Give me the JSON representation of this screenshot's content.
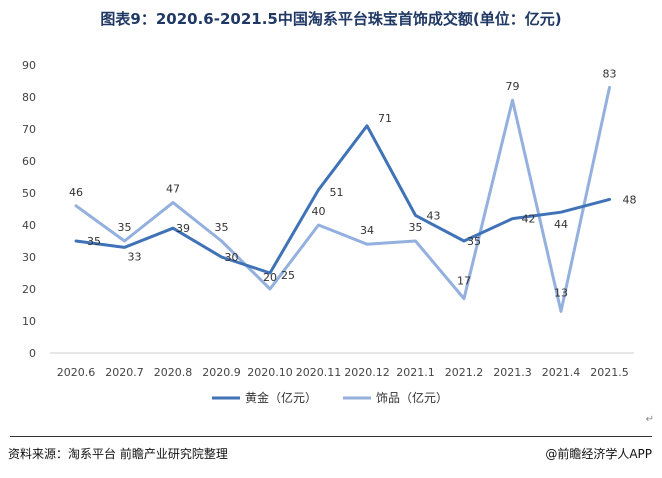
{
  "title": "图表9：2020.6-2021.5中国淘系平台珠宝首饰成交额(单位：亿元)",
  "source": "资料来源：淘系平台 前瞻产业研究院整理",
  "brand": "@前瞻经济学人APP",
  "corner_mark": "↵",
  "chart_data": {
    "type": "line",
    "categories": [
      "2020.6",
      "2020.7",
      "2020.8",
      "2020.9",
      "2020.10",
      "2020.11",
      "2020.12",
      "2021.1",
      "2021.2",
      "2021.3",
      "2021.4",
      "2021.5"
    ],
    "y_ticks": [
      "0",
      "10",
      "20",
      "30",
      "40",
      "50",
      "60",
      "70",
      "80",
      "90"
    ],
    "ylim": [
      0,
      90
    ],
    "grid": false,
    "legend_position": "bottom",
    "series": [
      {
        "name": "黄金（亿元）",
        "color": "#3f72b6",
        "values": [
          35,
          33,
          39,
          30,
          25,
          51,
          71,
          43,
          35,
          42,
          44,
          48
        ]
      },
      {
        "name": "饰品（亿元）",
        "color": "#94b0de",
        "values": [
          46,
          35,
          47,
          35,
          20,
          40,
          34,
          35,
          17,
          79,
          13,
          83
        ]
      }
    ]
  }
}
